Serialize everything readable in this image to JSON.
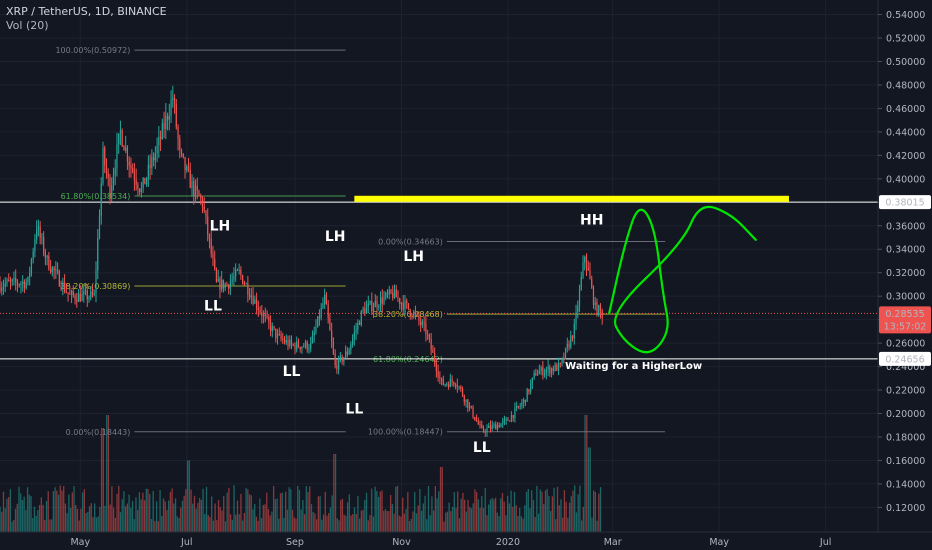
{
  "header": {
    "symbol_line": "XRP / TetherUS, 1D, BINANCE",
    "indicator_line": "Vol (20)"
  },
  "colors": {
    "background": "#131722",
    "grid": "#1e2230",
    "up": "#26a69a",
    "down": "#ef5350",
    "fib": "#787b86",
    "fib_mid": "#b7b935",
    "fib_low": "#4caf50",
    "resistance": "#ffff00",
    "projection": "#00e600",
    "price_tag": "#ef5350",
    "level_tag_bg": "#ffffff"
  },
  "chart_data": {
    "type": "candlestick",
    "title": "XRP / TetherUS, 1D, BINANCE",
    "ylim": [
      0.105,
      0.549
    ],
    "y_ticks": [
      "0.12000",
      "0.14000",
      "0.16000",
      "0.18000",
      "0.20000",
      "0.22000",
      "0.24000",
      "0.26000",
      "0.28000",
      "0.30000",
      "0.32000",
      "0.34000",
      "0.36000",
      "0.38000",
      "0.40000",
      "0.42000",
      "0.44000",
      "0.46000",
      "0.48000",
      "0.50000",
      "0.52000",
      "0.54000"
    ],
    "x_range": [
      "2019-03-16",
      "2020-07-31"
    ],
    "x_ticks": [
      {
        "label": "May",
        "date": "2019-05-01"
      },
      {
        "label": "Jul",
        "date": "2019-07-01"
      },
      {
        "label": "Sep",
        "date": "2019-09-01"
      },
      {
        "label": "Nov",
        "date": "2019-11-01"
      },
      {
        "label": "2020",
        "date": "2020-01-01"
      },
      {
        "label": "Mar",
        "date": "2020-03-01"
      },
      {
        "label": "May",
        "date": "2020-05-01"
      },
      {
        "label": "Jul",
        "date": "2020-07-01"
      }
    ],
    "price_path": [
      {
        "date": "2019-03-16",
        "price": 0.31
      },
      {
        "date": "2019-04-01",
        "price": 0.312
      },
      {
        "date": "2019-04-06",
        "price": 0.36
      },
      {
        "date": "2019-04-12",
        "price": 0.33
      },
      {
        "date": "2019-04-25",
        "price": 0.3
      },
      {
        "date": "2019-05-09",
        "price": 0.3
      },
      {
        "date": "2019-05-14",
        "price": 0.42
      },
      {
        "date": "2019-05-18",
        "price": 0.39
      },
      {
        "date": "2019-05-24",
        "price": 0.44
      },
      {
        "date": "2019-05-30",
        "price": 0.41
      },
      {
        "date": "2019-06-05",
        "price": 0.39
      },
      {
        "date": "2019-06-15",
        "price": 0.43
      },
      {
        "date": "2019-06-23",
        "price": 0.47
      },
      {
        "date": "2019-06-27",
        "price": 0.42
      },
      {
        "date": "2019-07-05",
        "price": 0.39
      },
      {
        "date": "2019-07-10",
        "price": 0.38
      },
      {
        "date": "2019-07-18",
        "price": 0.31
      },
      {
        "date": "2019-07-24",
        "price": 0.31
      },
      {
        "date": "2019-07-31",
        "price": 0.32
      },
      {
        "date": "2019-08-15",
        "price": 0.28
      },
      {
        "date": "2019-08-22",
        "price": 0.265
      },
      {
        "date": "2019-08-30",
        "price": 0.258
      },
      {
        "date": "2019-09-10",
        "price": 0.258
      },
      {
        "date": "2019-09-18",
        "price": 0.298
      },
      {
        "date": "2019-09-24",
        "price": 0.24
      },
      {
        "date": "2019-10-01",
        "price": 0.252
      },
      {
        "date": "2019-10-10",
        "price": 0.288
      },
      {
        "date": "2019-10-27",
        "price": 0.302
      },
      {
        "date": "2019-11-08",
        "price": 0.285
      },
      {
        "date": "2019-11-15",
        "price": 0.27
      },
      {
        "date": "2019-11-24",
        "price": 0.225
      },
      {
        "date": "2019-12-02",
        "price": 0.228
      },
      {
        "date": "2019-12-17",
        "price": 0.185
      },
      {
        "date": "2019-12-31",
        "price": 0.193
      },
      {
        "date": "2020-01-10",
        "price": 0.21
      },
      {
        "date": "2020-01-17",
        "price": 0.235
      },
      {
        "date": "2020-01-31",
        "price": 0.24
      },
      {
        "date": "2020-02-08",
        "price": 0.272
      },
      {
        "date": "2020-02-14",
        "price": 0.335
      },
      {
        "date": "2020-02-20",
        "price": 0.29
      },
      {
        "date": "2020-02-24",
        "price": 0.285
      }
    ],
    "volume_bars": 350,
    "volume_spikes": [
      {
        "date": "2019-05-14",
        "level": 0.8
      },
      {
        "date": "2019-05-17",
        "level": 0.9
      },
      {
        "date": "2019-07-02",
        "level": 0.55
      },
      {
        "date": "2019-09-24",
        "level": 0.6
      },
      {
        "date": "2019-11-24",
        "level": 0.5
      },
      {
        "date": "2020-02-15",
        "level": 0.9
      },
      {
        "date": "2020-02-17",
        "level": 0.65
      }
    ],
    "fibonacci": [
      {
        "label": "100.00%(0.50972)",
        "price": 0.50972,
        "from": "2019-06-01",
        "to": "2019-09-30",
        "tone": "fib"
      },
      {
        "label": "61.80%(0.38534)",
        "price": 0.38534,
        "from": "2019-06-01",
        "to": "2019-09-30",
        "tone": "fib_low"
      },
      {
        "label": "38.20%(0.30869)",
        "price": 0.30869,
        "from": "2019-06-01",
        "to": "2019-09-30",
        "tone": "fib_mid"
      },
      {
        "label": "0.00%(0.18443)",
        "price": 0.18443,
        "from": "2019-06-01",
        "to": "2019-09-30",
        "tone": "fib"
      },
      {
        "label": "0.00%(0.34663)",
        "price": 0.34663,
        "from": "2019-11-27",
        "to": "2020-03-31",
        "tone": "fib"
      },
      {
        "label": "38.20%(0.28468)",
        "price": 0.28468,
        "from": "2019-11-27",
        "to": "2020-03-31",
        "tone": "fib_mid"
      },
      {
        "label": "61.80%(0.24642)",
        "price": 0.24642,
        "from": "2019-11-27",
        "to": "2020-03-31",
        "tone": "fib_low"
      },
      {
        "label": "100.00%(0.18447)",
        "price": 0.18447,
        "from": "2019-11-27",
        "to": "2020-03-31",
        "tone": "fib"
      }
    ],
    "horizontal_levels": [
      {
        "label": "0.38015",
        "price": 0.38015
      },
      {
        "label": "0.24656",
        "price": 0.24656
      }
    ],
    "current_price": {
      "label": "0.28535",
      "price": 0.28535,
      "countdown": "13:57:02"
    },
    "resistance_zone": {
      "price": 0.383,
      "from": "2019-10-05",
      "to": "2020-06-10"
    },
    "annotations": [
      {
        "text": "LH",
        "date": "2019-07-20",
        "price": 0.356,
        "size": 14
      },
      {
        "text": "LL",
        "date": "2019-07-16",
        "price": 0.288,
        "size": 14
      },
      {
        "text": "LH",
        "date": "2019-09-24",
        "price": 0.347,
        "size": 14
      },
      {
        "text": "LL",
        "date": "2019-08-30",
        "price": 0.232,
        "size": 14
      },
      {
        "text": "LL",
        "date": "2019-10-05",
        "price": 0.2,
        "size": 14
      },
      {
        "text": "LH",
        "date": "2019-11-08",
        "price": 0.33,
        "size": 14
      },
      {
        "text": "LL",
        "date": "2019-12-17",
        "price": 0.167,
        "size": 14
      },
      {
        "text": "HH",
        "date": "2020-02-18",
        "price": 0.361,
        "size": 14
      },
      {
        "text": "Waiting for a HigherLow",
        "date": "2020-03-13",
        "price": 0.238,
        "size": 10
      }
    ],
    "projection_path": [
      {
        "date": "2020-02-28",
        "price": 0.2855
      },
      {
        "date": "2020-03-08",
        "price": 0.345
      },
      {
        "date": "2020-03-16",
        "price": 0.38
      },
      {
        "date": "2020-03-25",
        "price": 0.36
      },
      {
        "date": "2020-03-30",
        "price": 0.3
      },
      {
        "date": "2020-04-03",
        "price": 0.27
      },
      {
        "date": "2020-03-22",
        "price": 0.248
      },
      {
        "date": "2020-03-07",
        "price": 0.262
      },
      {
        "date": "2020-02-28",
        "price": 0.2855
      },
      {
        "date": "2020-04-10",
        "price": 0.345
      },
      {
        "date": "2020-04-20",
        "price": 0.38
      },
      {
        "date": "2020-05-08",
        "price": 0.37
      },
      {
        "date": "2020-05-22",
        "price": 0.348
      }
    ]
  }
}
